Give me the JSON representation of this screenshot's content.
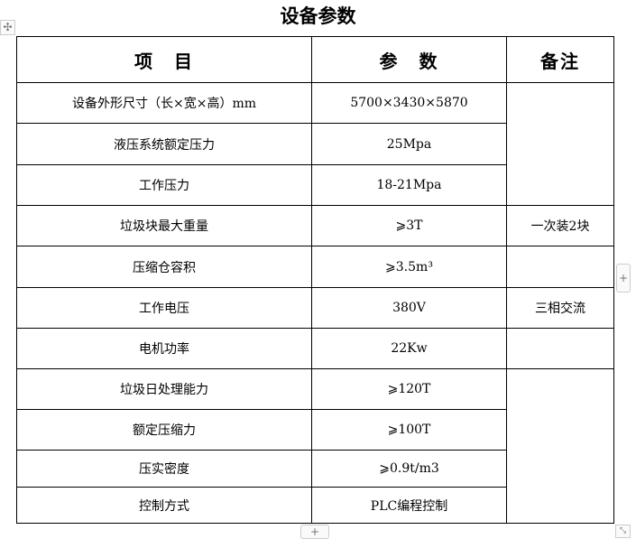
{
  "title": "设备参数",
  "headers": [
    "项　目",
    "参　数",
    "备注"
  ],
  "rows": [
    {
      "item": "设备外形尺寸（长×宽×高）mm",
      "param": "5700×3430×5870"
    },
    {
      "item": "液压系统额定压力",
      "param": "25Mpa"
    },
    {
      "item": "工作压力",
      "param": "18-21Mpa"
    },
    {
      "item": "垃圾块最大重量",
      "param": "⩾3T"
    },
    {
      "item": "压缩仓容积",
      "param": "⩾3.5m³"
    },
    {
      "item": "工作电压",
      "param": "380V"
    },
    {
      "item": "电机功率",
      "param": "22Kw"
    },
    {
      "item": "垃圾日处理能力",
      "param": "⩾120T"
    },
    {
      "item": "额定压缩力",
      "param": "⩾100T"
    },
    {
      "item": "压实密度",
      "param": "⩾0.9t/m3"
    },
    {
      "item": "控制方式",
      "param": "PLC编程控制"
    }
  ],
  "notes": {
    "n4": "一次装2块",
    "n6": "三相交流"
  },
  "icons": {
    "move": "move-icon",
    "add_col": "plus-icon",
    "add_row": "plus-icon",
    "resize": "resize-icon"
  }
}
